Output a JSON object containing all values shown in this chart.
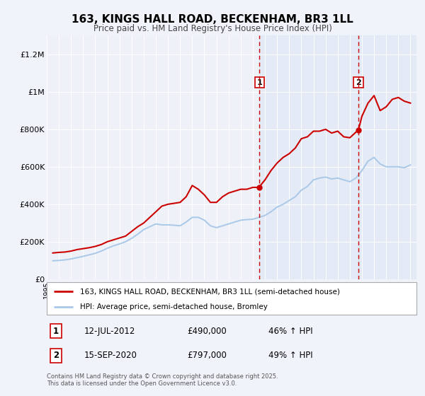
{
  "title": "163, KINGS HALL ROAD, BECKENHAM, BR3 1LL",
  "subtitle": "Price paid vs. HM Land Registry's House Price Index (HPI)",
  "title_fontsize": 11,
  "subtitle_fontsize": 8.5,
  "background_color": "#f0f4fa",
  "plot_bg_color": "#eef2f8",
  "red_color": "#cc0000",
  "blue_color": "#aac8e8",
  "ylim": [
    0,
    1300000
  ],
  "yticks": [
    0,
    200000,
    400000,
    600000,
    800000,
    1000000,
    1200000
  ],
  "ytick_labels": [
    "£0",
    "£200K",
    "£400K",
    "£600K",
    "£800K",
    "£1M",
    "£1.2M"
  ],
  "event1_x": 2012.54,
  "event1_y": 490000,
  "event1_label": "1",
  "event2_x": 2020.71,
  "event2_y": 797000,
  "event2_label": "2",
  "legend_label_red": "163, KINGS HALL ROAD, BECKENHAM, BR3 1LL (semi-detached house)",
  "legend_label_blue": "HPI: Average price, semi-detached house, Bromley",
  "annotation1_num": "1",
  "annotation1_date": "12-JUL-2012",
  "annotation1_price": "£490,000",
  "annotation1_hpi": "46% ↑ HPI",
  "annotation2_num": "2",
  "annotation2_date": "15-SEP-2020",
  "annotation2_price": "£797,000",
  "annotation2_hpi": "49% ↑ HPI",
  "footer": "Contains HM Land Registry data © Crown copyright and database right 2025.\nThis data is licensed under the Open Government Licence v3.0.",
  "xmin": 1995.0,
  "xmax": 2025.5,
  "red_x": [
    1995.5,
    1996.0,
    1996.5,
    1997.0,
    1997.5,
    1998.0,
    1998.5,
    1999.0,
    1999.5,
    2000.0,
    2000.5,
    2001.0,
    2001.5,
    2002.0,
    2002.5,
    2003.0,
    2003.5,
    2004.0,
    2004.5,
    2005.0,
    2005.5,
    2006.0,
    2006.5,
    2007.0,
    2007.5,
    2008.0,
    2008.5,
    2009.0,
    2009.5,
    2010.0,
    2010.5,
    2011.0,
    2011.5,
    2012.0,
    2012.5,
    2013.0,
    2013.5,
    2014.0,
    2014.5,
    2015.0,
    2015.5,
    2016.0,
    2016.5,
    2017.0,
    2017.5,
    2018.0,
    2018.5,
    2019.0,
    2019.5,
    2020.0,
    2020.71,
    2021.0,
    2021.5,
    2022.0,
    2022.5,
    2023.0,
    2023.5,
    2024.0,
    2024.5,
    2025.0
  ],
  "red_y": [
    140000,
    143000,
    145000,
    150000,
    158000,
    163000,
    168000,
    175000,
    185000,
    200000,
    210000,
    220000,
    230000,
    255000,
    280000,
    300000,
    330000,
    360000,
    390000,
    400000,
    405000,
    410000,
    440000,
    500000,
    480000,
    450000,
    410000,
    410000,
    440000,
    460000,
    470000,
    480000,
    480000,
    490000,
    490000,
    530000,
    580000,
    620000,
    650000,
    670000,
    700000,
    750000,
    760000,
    790000,
    790000,
    800000,
    780000,
    790000,
    760000,
    755000,
    797000,
    870000,
    940000,
    980000,
    900000,
    920000,
    960000,
    970000,
    950000,
    940000
  ],
  "blue_x": [
    1995.5,
    1996.0,
    1996.5,
    1997.0,
    1997.5,
    1998.0,
    1998.5,
    1999.0,
    1999.5,
    2000.0,
    2000.5,
    2001.0,
    2001.5,
    2002.0,
    2002.5,
    2003.0,
    2003.5,
    2004.0,
    2004.5,
    2005.0,
    2005.5,
    2006.0,
    2006.5,
    2007.0,
    2007.5,
    2008.0,
    2008.5,
    2009.0,
    2009.5,
    2010.0,
    2010.5,
    2011.0,
    2011.5,
    2012.0,
    2012.5,
    2013.0,
    2013.5,
    2014.0,
    2014.5,
    2015.0,
    2015.5,
    2016.0,
    2016.5,
    2017.0,
    2017.5,
    2018.0,
    2018.5,
    2019.0,
    2019.5,
    2020.0,
    2020.5,
    2021.0,
    2021.5,
    2022.0,
    2022.5,
    2023.0,
    2023.5,
    2024.0,
    2024.5,
    2025.0
  ],
  "blue_y": [
    98000,
    100000,
    103000,
    108000,
    115000,
    122000,
    130000,
    138000,
    150000,
    165000,
    178000,
    188000,
    200000,
    218000,
    240000,
    265000,
    280000,
    295000,
    290000,
    290000,
    288000,
    285000,
    305000,
    330000,
    330000,
    315000,
    285000,
    275000,
    285000,
    295000,
    305000,
    315000,
    318000,
    320000,
    330000,
    340000,
    360000,
    385000,
    400000,
    420000,
    440000,
    475000,
    495000,
    530000,
    540000,
    545000,
    535000,
    540000,
    530000,
    520000,
    540000,
    580000,
    630000,
    650000,
    615000,
    600000,
    600000,
    600000,
    595000,
    610000
  ]
}
